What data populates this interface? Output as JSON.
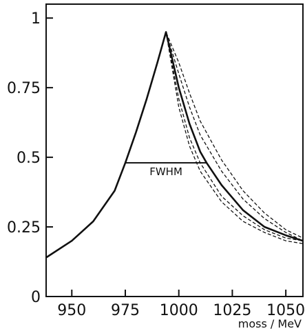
{
  "chart_data": {
    "type": "line",
    "title": "",
    "xlabel": "moss / MeV",
    "ylabel": "",
    "xlim": [
      938,
      1058
    ],
    "ylim": [
      0,
      1.05
    ],
    "grid": false,
    "x_ticks": [
      950,
      975,
      1000,
      1025,
      1050
    ],
    "x_tick_labels": [
      "950",
      "975",
      "1000",
      "1025",
      "1050"
    ],
    "y_ticks": [
      0,
      0.25,
      0.5,
      0.75,
      1
    ],
    "y_tick_labels": [
      "0",
      "0.25",
      "0.5",
      "0.75",
      "1"
    ],
    "annotation": {
      "text": "FWHM",
      "y": 0.48,
      "x_start": 975,
      "x_end": 1013
    },
    "series": [
      {
        "style": "solid",
        "x": [
          938,
          950,
          960,
          970,
          975,
          980,
          985,
          990,
          994,
          1000,
          1005,
          1010,
          1013,
          1020,
          1030,
          1040,
          1050,
          1058
        ],
        "y": [
          0.14,
          0.2,
          0.27,
          0.38,
          0.48,
          0.59,
          0.71,
          0.84,
          0.95,
          0.75,
          0.62,
          0.52,
          0.48,
          0.4,
          0.31,
          0.25,
          0.22,
          0.2
        ]
      },
      {
        "style": "dashed",
        "x": [
          938,
          950,
          960,
          970,
          975,
          980,
          985,
          990,
          994,
          1000,
          1005,
          1010,
          1020,
          1030,
          1040,
          1050,
          1058
        ],
        "y": [
          0.14,
          0.2,
          0.27,
          0.38,
          0.48,
          0.59,
          0.71,
          0.84,
          0.95,
          0.68,
          0.54,
          0.45,
          0.34,
          0.27,
          0.23,
          0.2,
          0.19
        ]
      },
      {
        "style": "dashed",
        "x": [
          938,
          950,
          960,
          970,
          975,
          980,
          985,
          990,
          994,
          1000,
          1005,
          1010,
          1020,
          1030,
          1040,
          1050,
          1058
        ],
        "y": [
          0.14,
          0.2,
          0.27,
          0.38,
          0.48,
          0.59,
          0.71,
          0.84,
          0.95,
          0.71,
          0.57,
          0.48,
          0.36,
          0.29,
          0.24,
          0.21,
          0.2
        ]
      },
      {
        "style": "dashed",
        "x": [
          938,
          950,
          960,
          970,
          975,
          980,
          985,
          990,
          994,
          1000,
          1005,
          1010,
          1020,
          1030,
          1040,
          1050,
          1058
        ],
        "y": [
          0.14,
          0.2,
          0.27,
          0.38,
          0.48,
          0.59,
          0.71,
          0.84,
          0.95,
          0.8,
          0.68,
          0.58,
          0.45,
          0.35,
          0.28,
          0.23,
          0.2
        ]
      },
      {
        "style": "dashed",
        "x": [
          938,
          950,
          960,
          970,
          975,
          980,
          985,
          990,
          994,
          1000,
          1005,
          1010,
          1020,
          1030,
          1040,
          1050,
          1058
        ],
        "y": [
          0.14,
          0.2,
          0.27,
          0.38,
          0.48,
          0.59,
          0.71,
          0.84,
          0.95,
          0.84,
          0.73,
          0.63,
          0.49,
          0.38,
          0.3,
          0.24,
          0.21
        ]
      }
    ]
  }
}
